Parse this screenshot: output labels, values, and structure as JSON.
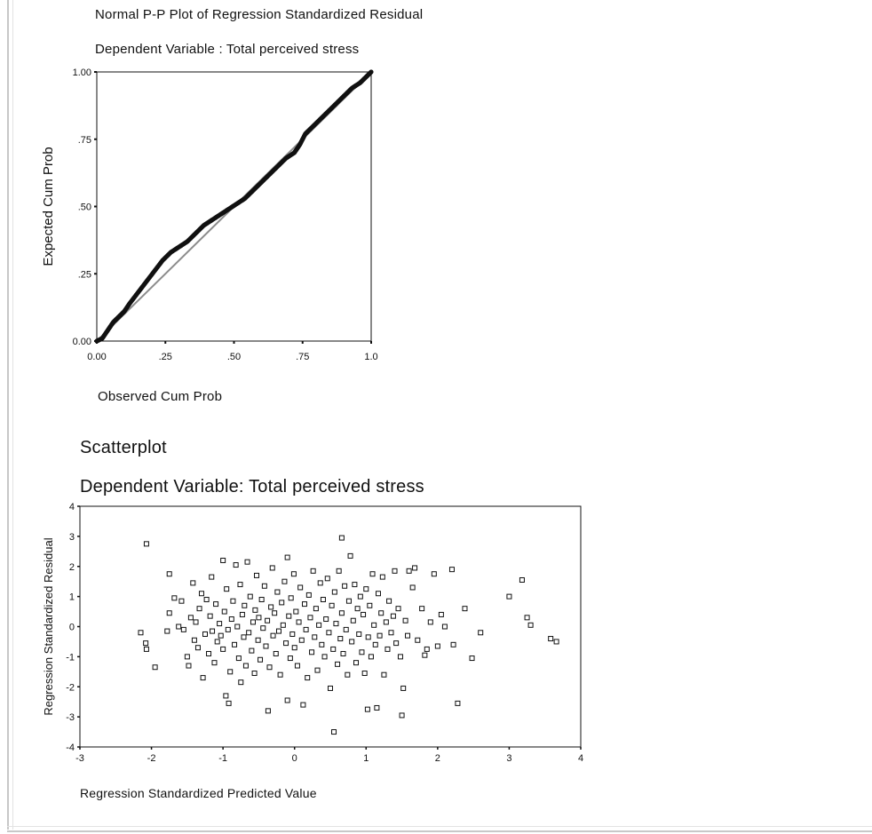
{
  "chart_data": [
    {
      "type": "line",
      "title": "Normal P-P Plot of Regression Standardized Residual",
      "subtitle": "Dependent Variable : Total perceived stress",
      "xlabel": "Observed Cum Prob",
      "ylabel": "Expected Cum Prob",
      "xlim": [
        0,
        1
      ],
      "ylim": [
        0,
        1
      ],
      "xticks": [
        {
          "value": 0,
          "label": "0.00"
        },
        {
          "value": 0.25,
          "label": ".25"
        },
        {
          "value": 0.5,
          "label": ".50"
        },
        {
          "value": 0.75,
          "label": ".75"
        },
        {
          "value": 1,
          "label": "1.0"
        }
      ],
      "yticks": [
        {
          "value": 0,
          "label": "0.00"
        },
        {
          "value": 0.25,
          "label": ".25"
        },
        {
          "value": 0.5,
          "label": ".50"
        },
        {
          "value": 0.75,
          "label": ".75"
        },
        {
          "value": 1,
          "label": "1.00"
        }
      ],
      "grid": false,
      "reference_line": [
        [
          0,
          0
        ],
        [
          1,
          1
        ]
      ],
      "line_color": "#8c8c8c",
      "marker_color": "#111111",
      "curve": [
        [
          0.0,
          0.0
        ],
        [
          0.02,
          0.01
        ],
        [
          0.04,
          0.04
        ],
        [
          0.06,
          0.07
        ],
        [
          0.08,
          0.09
        ],
        [
          0.1,
          0.11
        ],
        [
          0.12,
          0.14
        ],
        [
          0.15,
          0.18
        ],
        [
          0.18,
          0.22
        ],
        [
          0.21,
          0.26
        ],
        [
          0.24,
          0.3
        ],
        [
          0.27,
          0.33
        ],
        [
          0.3,
          0.35
        ],
        [
          0.33,
          0.37
        ],
        [
          0.36,
          0.4
        ],
        [
          0.39,
          0.43
        ],
        [
          0.42,
          0.45
        ],
        [
          0.45,
          0.47
        ],
        [
          0.48,
          0.49
        ],
        [
          0.51,
          0.51
        ],
        [
          0.54,
          0.53
        ],
        [
          0.57,
          0.56
        ],
        [
          0.6,
          0.59
        ],
        [
          0.63,
          0.62
        ],
        [
          0.66,
          0.65
        ],
        [
          0.69,
          0.68
        ],
        [
          0.72,
          0.7
        ],
        [
          0.74,
          0.73
        ],
        [
          0.76,
          0.77
        ],
        [
          0.78,
          0.79
        ],
        [
          0.81,
          0.82
        ],
        [
          0.84,
          0.85
        ],
        [
          0.87,
          0.88
        ],
        [
          0.9,
          0.91
        ],
        [
          0.93,
          0.94
        ],
        [
          0.96,
          0.96
        ],
        [
          0.98,
          0.98
        ],
        [
          1.0,
          1.0
        ]
      ]
    },
    {
      "type": "scatter",
      "title": "Scatterplot",
      "subtitle": "Dependent Variable: Total perceived stress",
      "xlabel": "Regression Standardized Predicted Value",
      "ylabel": "Regression Standardized Residual",
      "xlim": [
        -3,
        4
      ],
      "ylim": [
        -4,
        4
      ],
      "xticks": [
        -3,
        -2,
        -1,
        0,
        1,
        2,
        3,
        4
      ],
      "yticks": [
        4,
        3,
        2,
        1,
        0,
        -1,
        -2,
        -3,
        -4
      ],
      "grid": false,
      "marker": "hollow-square",
      "points": [
        [
          -2.15,
          -0.2
        ],
        [
          -2.08,
          -0.55
        ],
        [
          -2.07,
          -0.75
        ],
        [
          -2.07,
          2.75
        ],
        [
          -1.95,
          -1.35
        ],
        [
          -1.78,
          -0.15
        ],
        [
          -1.75,
          0.45
        ],
        [
          -1.75,
          1.75
        ],
        [
          -1.68,
          0.95
        ],
        [
          -1.62,
          0.0
        ],
        [
          -1.58,
          0.85
        ],
        [
          -1.55,
          -0.1
        ],
        [
          -1.5,
          -1.0
        ],
        [
          -1.48,
          -1.3
        ],
        [
          -1.45,
          0.3
        ],
        [
          -1.42,
          1.45
        ],
        [
          -1.4,
          -0.45
        ],
        [
          -1.38,
          0.15
        ],
        [
          -1.35,
          -0.7
        ],
        [
          -1.33,
          0.6
        ],
        [
          -1.3,
          1.1
        ],
        [
          -1.28,
          -1.7
        ],
        [
          -1.25,
          -0.25
        ],
        [
          -1.23,
          0.9
        ],
        [
          -1.2,
          -0.9
        ],
        [
          -1.18,
          0.35
        ],
        [
          -1.16,
          1.65
        ],
        [
          -1.15,
          -0.15
        ],
        [
          -1.12,
          -1.2
        ],
        [
          -1.1,
          0.75
        ],
        [
          -1.08,
          -0.5
        ],
        [
          -1.05,
          0.1
        ],
        [
          -1.03,
          -0.3
        ],
        [
          -1.0,
          2.2
        ],
        [
          -1.0,
          -0.75
        ],
        [
          -0.98,
          0.5
        ],
        [
          -0.96,
          -2.3
        ],
        [
          -0.95,
          1.25
        ],
        [
          -0.93,
          -0.1
        ],
        [
          -0.92,
          -2.55
        ],
        [
          -0.9,
          -1.5
        ],
        [
          -0.88,
          0.25
        ],
        [
          -0.86,
          0.85
        ],
        [
          -0.84,
          -0.6
        ],
        [
          -0.82,
          2.05
        ],
        [
          -0.8,
          0.0
        ],
        [
          -0.78,
          -1.05
        ],
        [
          -0.76,
          1.4
        ],
        [
          -0.75,
          -1.85
        ],
        [
          -0.73,
          0.4
        ],
        [
          -0.71,
          -0.35
        ],
        [
          -0.7,
          0.7
        ],
        [
          -0.68,
          -1.3
        ],
        [
          -0.66,
          2.15
        ],
        [
          -0.64,
          -0.2
        ],
        [
          -0.62,
          1.0
        ],
        [
          -0.6,
          -0.8
        ],
        [
          -0.58,
          0.15
        ],
        [
          -0.56,
          -1.55
        ],
        [
          -0.55,
          0.55
        ],
        [
          -0.53,
          1.7
        ],
        [
          -0.51,
          -0.45
        ],
        [
          -0.5,
          0.3
        ],
        [
          -0.48,
          -1.1
        ],
        [
          -0.46,
          0.9
        ],
        [
          -0.44,
          -0.05
        ],
        [
          -0.42,
          1.35
        ],
        [
          -0.4,
          -0.65
        ],
        [
          -0.38,
          0.2
        ],
        [
          -0.37,
          -2.8
        ],
        [
          -0.35,
          -1.35
        ],
        [
          -0.33,
          0.65
        ],
        [
          -0.31,
          1.95
        ],
        [
          -0.3,
          -0.3
        ],
        [
          -0.28,
          0.45
        ],
        [
          -0.26,
          -0.9
        ],
        [
          -0.24,
          1.15
        ],
        [
          -0.22,
          -0.15
        ],
        [
          -0.2,
          -1.6
        ],
        [
          -0.18,
          0.8
        ],
        [
          -0.16,
          0.05
        ],
        [
          -0.14,
          1.5
        ],
        [
          -0.12,
          -0.55
        ],
        [
          -0.1,
          2.3
        ],
        [
          -0.1,
          -2.45
        ],
        [
          -0.08,
          0.35
        ],
        [
          -0.06,
          -1.05
        ],
        [
          -0.05,
          0.95
        ],
        [
          -0.03,
          -0.25
        ],
        [
          -0.01,
          1.75
        ],
        [
          0.0,
          -0.7
        ],
        [
          0.02,
          0.5
        ],
        [
          0.04,
          -1.3
        ],
        [
          0.06,
          0.15
        ],
        [
          0.08,
          1.3
        ],
        [
          0.1,
          -0.45
        ],
        [
          0.12,
          -2.6
        ],
        [
          0.14,
          0.75
        ],
        [
          0.16,
          -0.1
        ],
        [
          0.18,
          -1.7
        ],
        [
          0.2,
          1.05
        ],
        [
          0.22,
          0.3
        ],
        [
          0.24,
          -0.85
        ],
        [
          0.26,
          1.85
        ],
        [
          0.28,
          -0.35
        ],
        [
          0.3,
          0.6
        ],
        [
          0.32,
          -1.45
        ],
        [
          0.34,
          0.05
        ],
        [
          0.36,
          1.45
        ],
        [
          0.38,
          -0.6
        ],
        [
          0.4,
          0.9
        ],
        [
          0.42,
          -1.0
        ],
        [
          0.44,
          0.25
        ],
        [
          0.46,
          1.6
        ],
        [
          0.48,
          -0.2
        ],
        [
          0.5,
          -2.05
        ],
        [
          0.52,
          0.7
        ],
        [
          0.54,
          -0.75
        ],
        [
          0.55,
          -3.5
        ],
        [
          0.56,
          1.15
        ],
        [
          0.58,
          0.1
        ],
        [
          0.6,
          -1.25
        ],
        [
          0.62,
          1.85
        ],
        [
          0.64,
          -0.4
        ],
        [
          0.66,
          2.95
        ],
        [
          0.66,
          0.45
        ],
        [
          0.68,
          -0.9
        ],
        [
          0.7,
          1.35
        ],
        [
          0.72,
          -0.1
        ],
        [
          0.74,
          -1.6
        ],
        [
          0.76,
          0.85
        ],
        [
          0.78,
          2.35
        ],
        [
          0.8,
          -0.5
        ],
        [
          0.82,
          0.2
        ],
        [
          0.84,
          1.4
        ],
        [
          0.86,
          -1.2
        ],
        [
          0.88,
          0.6
        ],
        [
          0.9,
          -0.25
        ],
        [
          0.92,
          1.0
        ],
        [
          0.94,
          -0.85
        ],
        [
          0.96,
          0.4
        ],
        [
          0.98,
          -1.55
        ],
        [
          1.0,
          1.25
        ],
        [
          1.02,
          -2.75
        ],
        [
          1.03,
          -0.35
        ],
        [
          1.05,
          0.7
        ],
        [
          1.07,
          -1.0
        ],
        [
          1.09,
          1.75
        ],
        [
          1.11,
          0.05
        ],
        [
          1.13,
          -0.6
        ],
        [
          1.15,
          -2.7
        ],
        [
          1.17,
          1.1
        ],
        [
          1.19,
          -0.3
        ],
        [
          1.21,
          0.45
        ],
        [
          1.23,
          1.65
        ],
        [
          1.25,
          -1.6
        ],
        [
          1.28,
          0.15
        ],
        [
          1.3,
          -0.75
        ],
        [
          1.32,
          0.85
        ],
        [
          1.35,
          -0.2
        ],
        [
          1.38,
          0.35
        ],
        [
          1.4,
          1.85
        ],
        [
          1.42,
          -0.55
        ],
        [
          1.45,
          0.6
        ],
        [
          1.48,
          -1.0
        ],
        [
          1.5,
          -2.95
        ],
        [
          1.52,
          -2.05
        ],
        [
          1.55,
          0.2
        ],
        [
          1.58,
          -0.3
        ],
        [
          1.6,
          1.85
        ],
        [
          1.65,
          1.3
        ],
        [
          1.68,
          1.95
        ],
        [
          1.72,
          -0.45
        ],
        [
          1.78,
          0.6
        ],
        [
          1.82,
          -0.95
        ],
        [
          1.85,
          -0.75
        ],
        [
          1.9,
          0.15
        ],
        [
          1.95,
          1.75
        ],
        [
          2.0,
          -0.65
        ],
        [
          2.05,
          0.4
        ],
        [
          2.1,
          0.0
        ],
        [
          2.2,
          1.9
        ],
        [
          2.22,
          -0.6
        ],
        [
          2.28,
          -2.55
        ],
        [
          2.38,
          0.6
        ],
        [
          2.48,
          -1.05
        ],
        [
          2.6,
          -0.2
        ],
        [
          3.0,
          1.0
        ],
        [
          3.18,
          1.55
        ],
        [
          3.25,
          0.3
        ],
        [
          3.3,
          0.05
        ],
        [
          3.58,
          -0.4
        ],
        [
          3.66,
          -0.5
        ]
      ]
    }
  ]
}
